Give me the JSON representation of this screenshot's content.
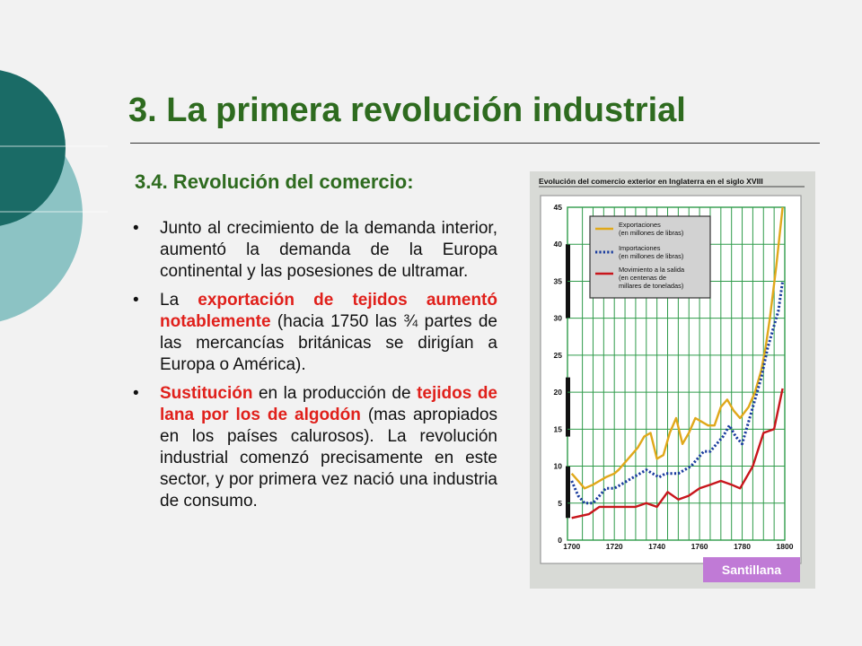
{
  "slide": {
    "title": "3. La primera revolución industrial",
    "subtitle": "3.4. Revolución del comercio:",
    "bullets": [
      {
        "parts": [
          {
            "text": "Junto al crecimiento de la demanda interior, aumentó la demanda de la Europa continental y las posesiones de ultramar.",
            "highlight": false
          }
        ]
      },
      {
        "parts": [
          {
            "text": "La ",
            "highlight": false
          },
          {
            "text": "exportación de tejidos aumentó notablemente",
            "highlight": true
          },
          {
            "text": " (hacia 1750 las ¾ partes de las mercancías británicas se dirigían a Europa o América).",
            "highlight": false
          }
        ]
      },
      {
        "parts": [
          {
            "text": "Sustitución",
            "highlight": true
          },
          {
            "text": " en la producción de ",
            "highlight": false
          },
          {
            "text": "tejidos de lana por los de algodón",
            "highlight": true
          },
          {
            "text": " (mas apropiados en los países calurosos). La revolución industrial comenzó precisamente en este sector, y por primera vez nació una industria de consumo.",
            "highlight": false
          }
        ]
      }
    ],
    "bullet_symbol": "•"
  },
  "colors": {
    "title_green": "#2e6b1f",
    "highlight_red": "#e0201b",
    "deco_teal_dark": "#1a6b66",
    "deco_teal_light": "#8cc3c4",
    "grid_green": "#2f9b4a",
    "plot_bg": "#ffffff",
    "publisher_bg": "#c07ad6"
  },
  "chart_data": {
    "type": "line",
    "title": "Evolución del comercio exterior en Inglaterra en el siglo XVIII",
    "x_ticks": [
      "1700",
      "1720",
      "1740",
      "1760",
      "1780",
      "1800"
    ],
    "y_ticks": [
      "0",
      "5",
      "10",
      "15",
      "20",
      "25",
      "30",
      "35",
      "40",
      "45"
    ],
    "xlim": [
      1698,
      1800
    ],
    "ylim": [
      0,
      45
    ],
    "grid": true,
    "legend_position": "top-left",
    "series": [
      {
        "name": "Exportaciones",
        "name_line2": "(en millones de libras)",
        "color": "#e0a81a",
        "style": "solid",
        "x": [
          1700,
          1703,
          1706,
          1710,
          1713,
          1716,
          1720,
          1722,
          1725,
          1728,
          1731,
          1734,
          1737,
          1740,
          1743,
          1746,
          1749,
          1752,
          1755,
          1758,
          1761,
          1764,
          1767,
          1770,
          1773,
          1776,
          1779,
          1783,
          1786,
          1789,
          1791,
          1793,
          1796,
          1799
        ],
        "y": [
          9,
          8,
          7,
          7.5,
          8,
          8.5,
          9,
          9.5,
          10.5,
          11.5,
          12.5,
          14,
          14.5,
          11,
          11.5,
          14.5,
          16.5,
          13,
          14.5,
          16.5,
          16,
          15.5,
          15.5,
          18,
          19,
          17.5,
          16.5,
          18,
          20,
          23,
          26,
          30,
          37,
          45
        ]
      },
      {
        "name": "Importaciones",
        "name_line2": "(en millones de libras)",
        "color": "#1a3c9e",
        "style": "dotted",
        "x": [
          1700,
          1703,
          1706,
          1710,
          1713,
          1716,
          1720,
          1723,
          1726,
          1729,
          1732,
          1735,
          1738,
          1741,
          1744,
          1747,
          1750,
          1753,
          1756,
          1759,
          1762,
          1765,
          1768,
          1771,
          1774,
          1777,
          1780,
          1783,
          1786,
          1789,
          1792,
          1795,
          1797,
          1799
        ],
        "y": [
          8,
          6,
          5,
          5,
          6,
          7,
          7,
          7.5,
          8,
          8.5,
          9,
          9.5,
          9,
          8.5,
          9,
          9,
          9,
          9.5,
          10,
          11,
          12,
          12,
          13,
          14,
          15.5,
          14,
          13,
          16,
          19,
          22,
          26,
          29,
          31,
          35
        ]
      },
      {
        "name": "Movimiento a la salida",
        "name_line2": "(en centenas de",
        "name_line3": "millares de toneladas)",
        "color": "#c8161c",
        "style": "solid",
        "x": [
          1700,
          1708,
          1713,
          1720,
          1725,
          1730,
          1735,
          1740,
          1745,
          1750,
          1755,
          1760,
          1765,
          1770,
          1775,
          1779,
          1785,
          1790,
          1795,
          1799
        ],
        "y": [
          3,
          3.5,
          4.5,
          4.5,
          4.5,
          4.5,
          5,
          4.5,
          6.5,
          5.5,
          6,
          7,
          7.5,
          8,
          7.5,
          7,
          10,
          14.5,
          15,
          20.5
        ]
      }
    ],
    "publisher": "Santillana"
  }
}
